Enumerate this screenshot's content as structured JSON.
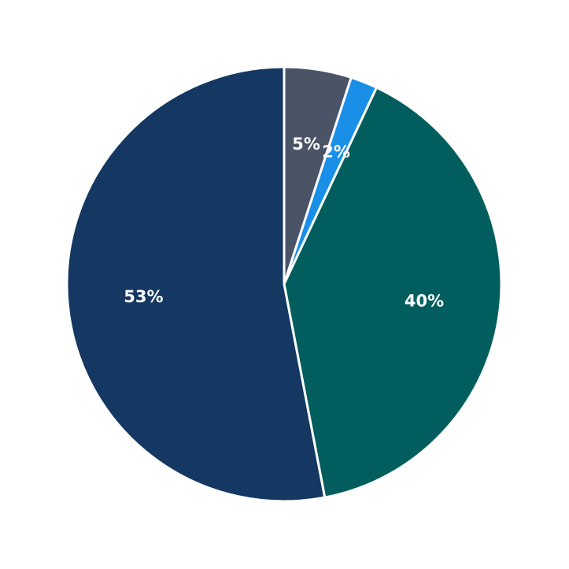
{
  "chart_data": {
    "type": "pie",
    "values": [
      5,
      2,
      40,
      53
    ],
    "value_labels": [
      "5%",
      "2%",
      "40%",
      "53%"
    ],
    "colors": [
      "#4a5466",
      "#1a8fe8",
      "#025e5e",
      "#143862"
    ],
    "start_angle": 90,
    "direction": "clockwise"
  }
}
